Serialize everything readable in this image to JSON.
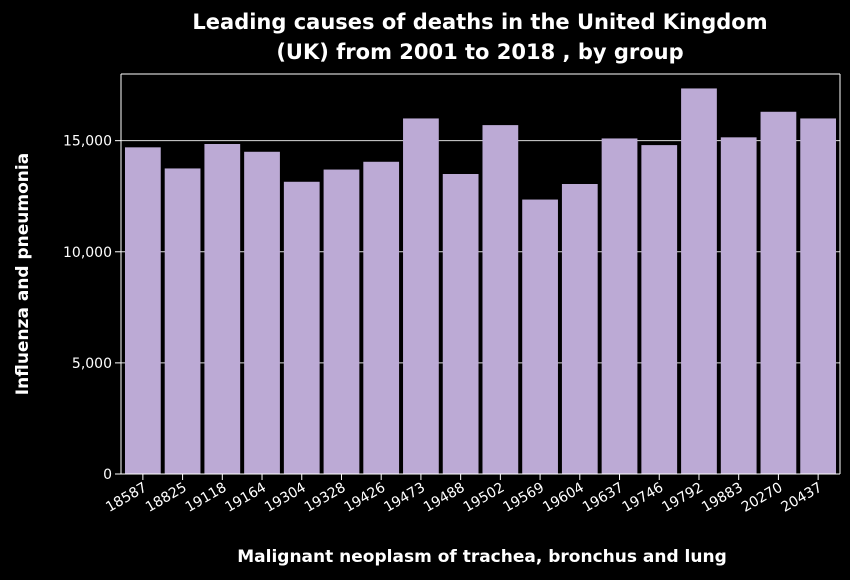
{
  "chart_data": {
    "type": "bar",
    "title": "Leading causes of deaths in the United Kingdom (UK) from 2001 to 2018 , by group",
    "title_lines": [
      "Leading causes of deaths in the United Kingdom",
      "(UK) from 2001 to 2018 , by group"
    ],
    "xlabel": "Malignant neoplasm of trachea, bronchus and lung",
    "ylabel": "Influenza and pneumonia",
    "categories": [
      "18587",
      "18825",
      "19118",
      "19164",
      "19304",
      "19328",
      "19426",
      "19473",
      "19488",
      "19502",
      "19569",
      "19604",
      "19637",
      "19746",
      "19792",
      "19883",
      "20270",
      "20437"
    ],
    "values": [
      14700,
      13750,
      14850,
      14500,
      13150,
      13700,
      14050,
      16000,
      13500,
      15700,
      12350,
      13050,
      15100,
      14800,
      17350,
      15150,
      16300,
      16000
    ],
    "yticks": [
      0,
      5000,
      10000,
      15000
    ],
    "ytick_labels": [
      "0",
      "5,000",
      "10,000",
      "15,000"
    ],
    "ylim": [
      0,
      18000
    ],
    "grid": true,
    "bar_color": "#bcaad5",
    "background_color": "#000000",
    "text_color": "#ffffff",
    "grid_color": "#ffffff"
  }
}
